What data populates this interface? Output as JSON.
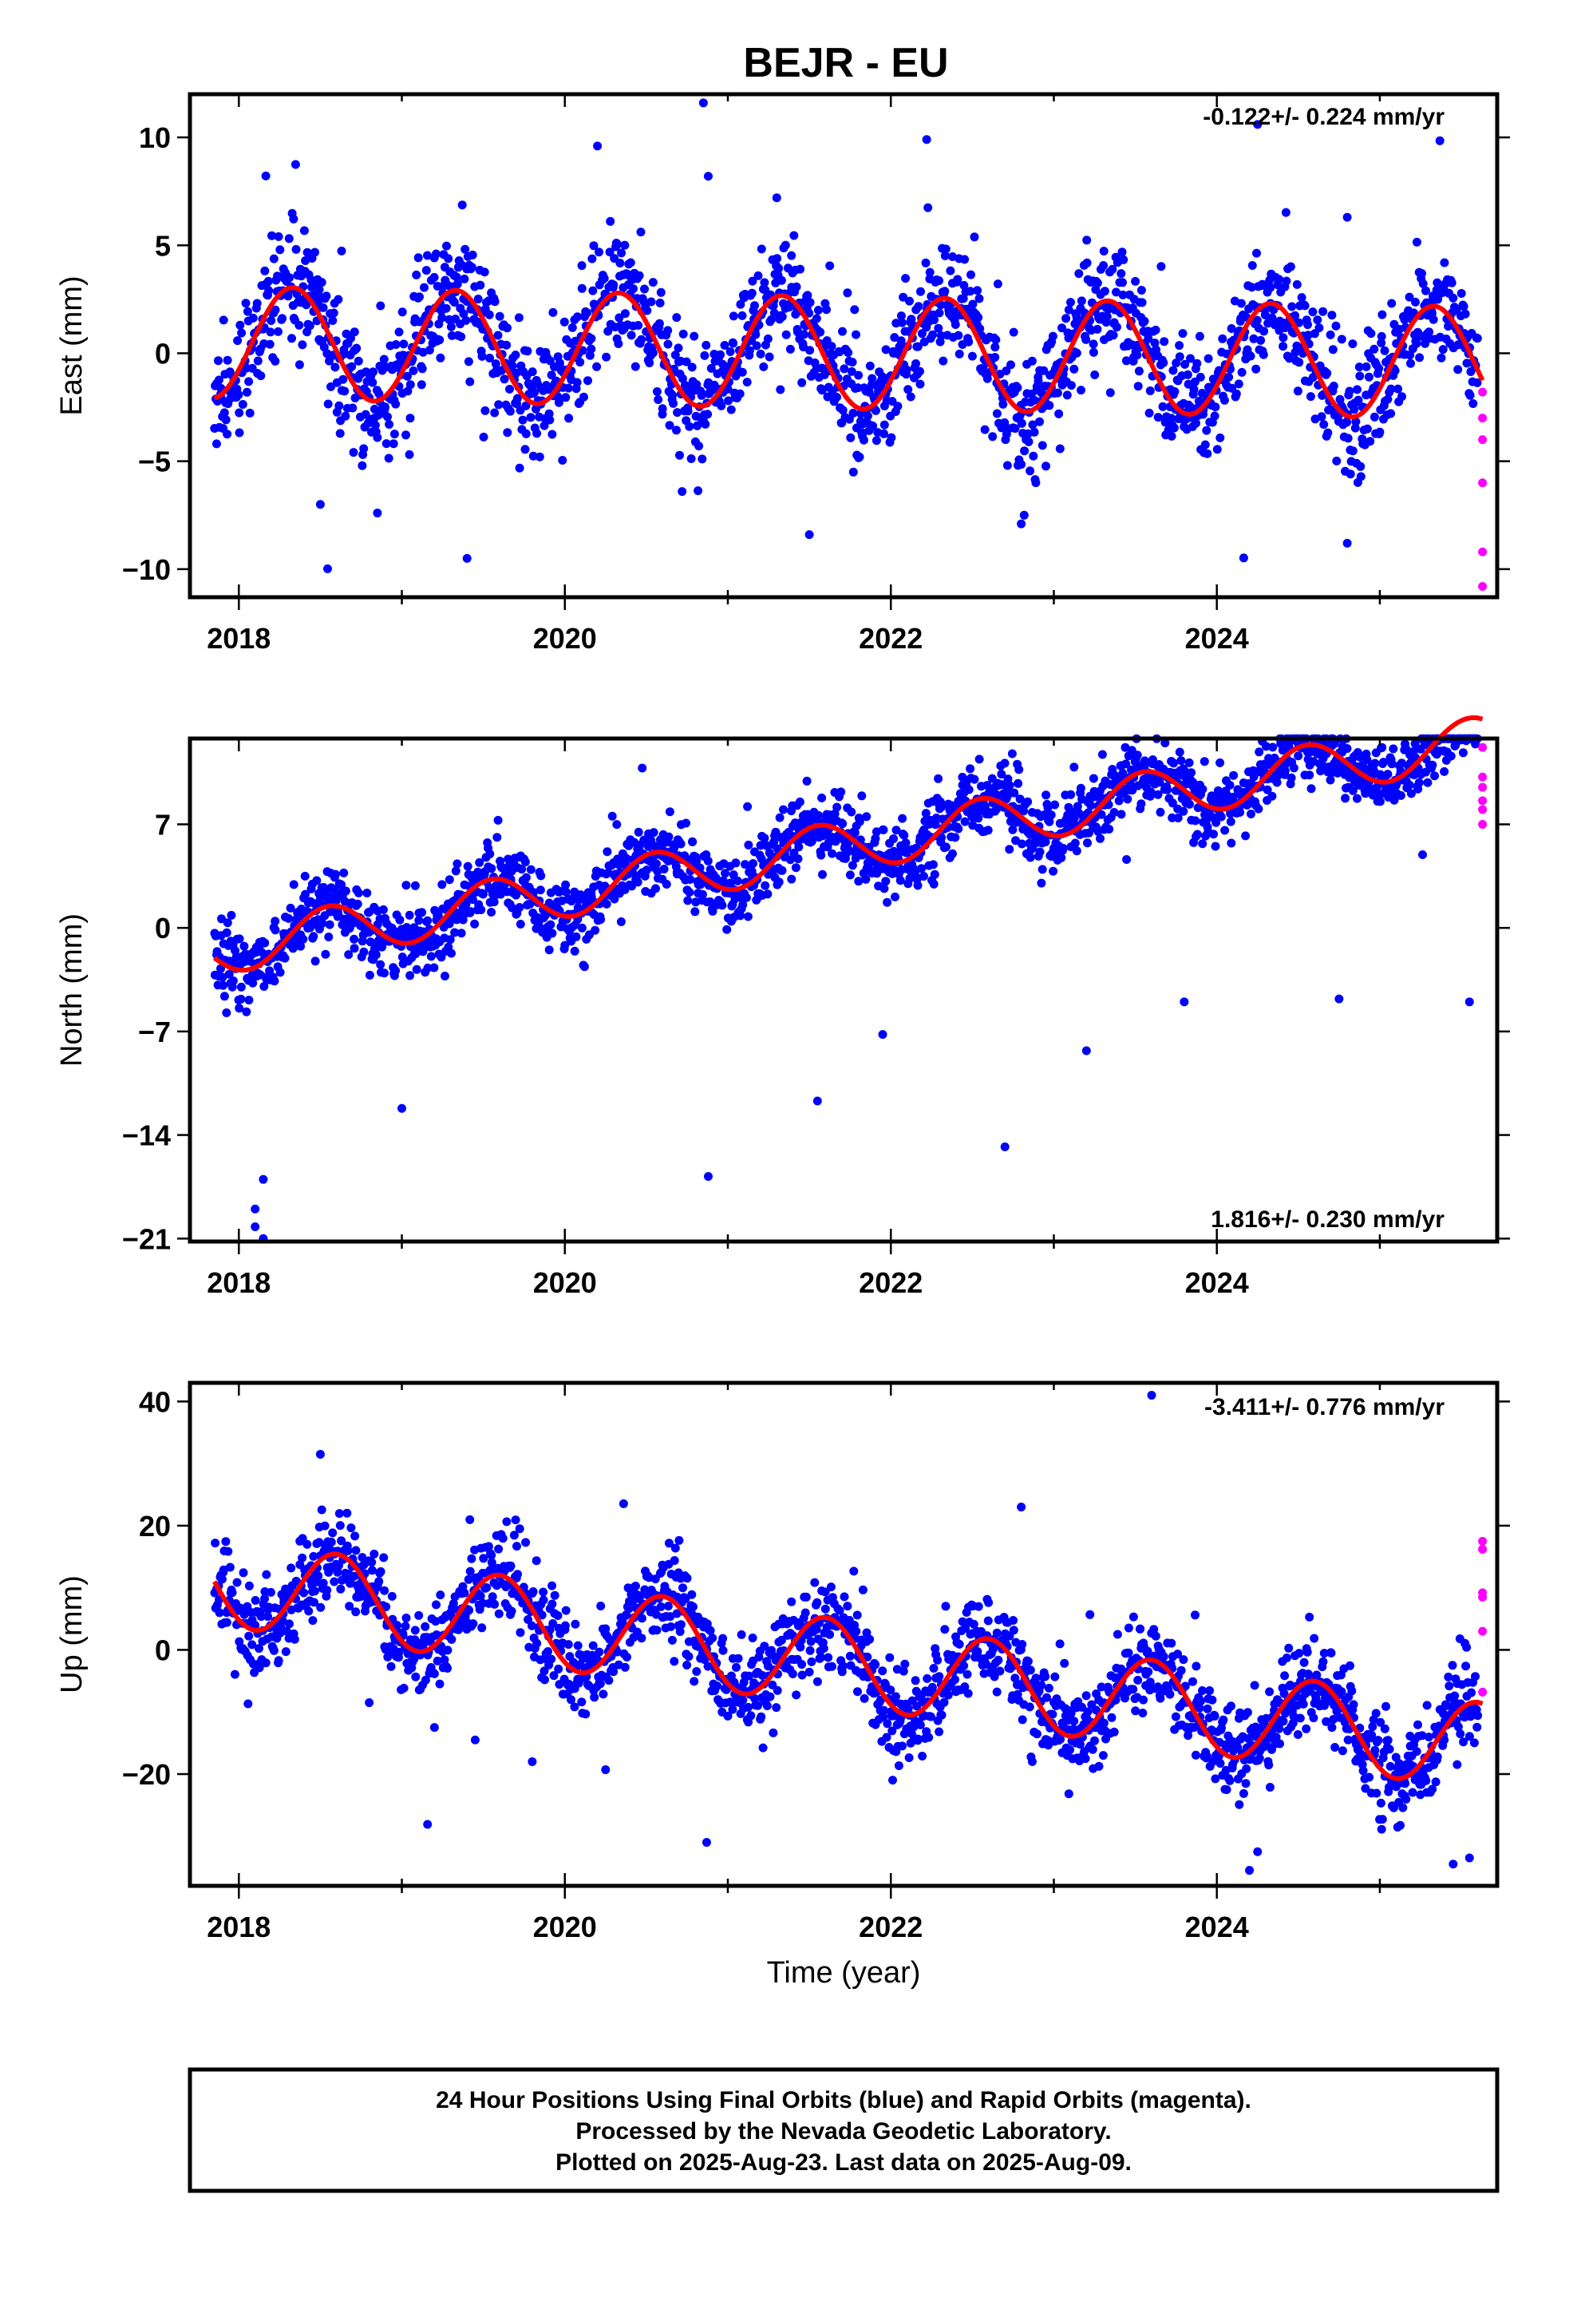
{
  "title": "BEJR - EU",
  "xlabel": "Time (year)",
  "footer": [
    "24 Hour Positions Using Final Orbits (blue) and Rapid Orbits (magenta).",
    "Processed by the Nevada Geodetic Laboratory.",
    "Plotted on 2025-Aug-23. Last data on 2025-Aug-09."
  ],
  "colors": {
    "final": "#0000ff",
    "rapid": "#ff00ff",
    "fit": "#ff0000",
    "frame": "#000000"
  },
  "chart_data": [
    {
      "type": "scatter",
      "component": "east",
      "ylabel": "East (mm)",
      "rate_text": "-0.122+/- 0.224 mm/yr",
      "rate_position": "top-right",
      "xlim": [
        2017.7,
        2025.72
      ],
      "ylim": [
        -11.3,
        12
      ],
      "xticks": [
        2018,
        2020,
        2022,
        2024
      ],
      "xtick_labels": [
        "2018",
        "2020",
        "2022",
        "2024"
      ],
      "yticks": [
        -10,
        -5,
        0,
        5,
        10
      ],
      "ytick_labels": [
        "−10",
        "−5",
        "0",
        "5",
        "10"
      ],
      "series": [
        {
          "kind": "final_orbits",
          "x_start": 2017.85,
          "x_end": 2025.6,
          "amplitude": 2.6,
          "phase": 2018.33,
          "rate": -0.122,
          "offset": 0.5,
          "noise": 1.35,
          "samples": 1900
        },
        {
          "kind": "rapid_orbits",
          "x": [
            2025.63,
            2025.63,
            2025.63,
            2025.63,
            2025.63,
            2025.63
          ],
          "y": [
            -3.0,
            -4.0,
            -6.0,
            -9.2,
            -10.8,
            -1.8
          ]
        },
        {
          "kind": "fit",
          "x_start": 2017.85,
          "x_end": 2025.63
        }
      ],
      "outliers": [
        [
          2020.2,
          9.6
        ],
        [
          2020.85,
          11.6
        ],
        [
          2020.88,
          8.2
        ],
        [
          2022.22,
          9.9
        ],
        [
          2024.25,
          10.6
        ],
        [
          2019.4,
          -9.5
        ],
        [
          2018.5,
          -7.0
        ],
        [
          2018.85,
          -7.4
        ],
        [
          2021.5,
          -8.4
        ],
        [
          2022.8,
          -7.9
        ],
        [
          2024.8,
          -8.8
        ],
        [
          2021.3,
          7.2
        ],
        [
          2024.8,
          6.3
        ]
      ]
    },
    {
      "type": "scatter",
      "component": "north",
      "ylabel": "North (mm)",
      "rate_text": "1.816+/- 0.230 mm/yr",
      "rate_position": "bottom-right",
      "xlim": [
        2017.7,
        2025.72
      ],
      "ylim": [
        -21.2,
        12.8
      ],
      "xticks": [
        2018,
        2020,
        2022,
        2024
      ],
      "xtick_labels": [
        "2018",
        "2020",
        "2022",
        "2024"
      ],
      "yticks": [
        -21,
        -14,
        -7,
        0,
        7
      ],
      "ytick_labels": [
        "−21",
        "−14",
        "−7",
        "0",
        "7"
      ],
      "series": [
        {
          "kind": "final_orbits",
          "x_start": 2017.85,
          "x_end": 2025.6,
          "amplitude": 1.7,
          "phase": 2018.55,
          "rate": 1.816,
          "offset": -1.5,
          "noise": 1.2,
          "samples": 1900
        },
        {
          "kind": "rapid_orbits",
          "x": [
            2025.63,
            2025.63,
            2025.63,
            2025.63,
            2025.63,
            2025.63
          ],
          "y": [
            12.2,
            10.2,
            9.5,
            8.6,
            8.0,
            7.0
          ]
        },
        {
          "kind": "fit",
          "x_start": 2017.85,
          "x_end": 2025.63
        }
      ],
      "outliers": [
        [
          2018.1,
          -20.2
        ],
        [
          2018.15,
          -21.0
        ],
        [
          2018.1,
          -19.0
        ],
        [
          2018.15,
          -17.0
        ],
        [
          2020.88,
          -16.8
        ],
        [
          2022.7,
          -14.8
        ],
        [
          2021.55,
          -11.7
        ],
        [
          2019.0,
          -12.2
        ],
        [
          2021.95,
          -7.2
        ],
        [
          2023.2,
          -8.3
        ],
        [
          2023.8,
          -5.0
        ],
        [
          2024.75,
          -4.8
        ],
        [
          2025.55,
          -5.0
        ]
      ]
    },
    {
      "type": "scatter",
      "component": "up",
      "ylabel": "Up (mm)",
      "rate_text": "-3.411+/- 0.776 mm/yr",
      "rate_position": "top-right",
      "xlim": [
        2017.7,
        2025.72
      ],
      "ylim": [
        -38,
        43
      ],
      "xticks": [
        2018,
        2020,
        2022,
        2024
      ],
      "xtick_labels": [
        "2018",
        "2020",
        "2022",
        "2024"
      ],
      "yticks": [
        -20,
        0,
        20,
        40
      ],
      "ytick_labels": [
        "−20",
        "0",
        "20",
        "40"
      ],
      "series": [
        {
          "kind": "final_orbits",
          "x_start": 2017.85,
          "x_end": 2025.6,
          "amplitude": 7.0,
          "phase": 2018.6,
          "rate": -3.411,
          "offset": 11.0,
          "noise": 3.6,
          "samples": 1900
        },
        {
          "kind": "rapid_orbits",
          "x": [
            2025.63,
            2025.63,
            2025.63,
            2025.63,
            2025.63,
            2025.63
          ],
          "y": [
            17.5,
            16.2,
            9.2,
            8.5,
            3.0,
            -6.8
          ]
        },
        {
          "kind": "fit",
          "x_start": 2017.85,
          "x_end": 2025.63
        }
      ],
      "outliers": [
        [
          2023.6,
          41.0
        ],
        [
          2018.5,
          31.5
        ],
        [
          2020.87,
          -31.0
        ],
        [
          2024.2,
          -35.5
        ],
        [
          2024.25,
          -32.5
        ],
        [
          2025.45,
          -34.5
        ],
        [
          2025.55,
          -33.5
        ],
        [
          2019.8,
          -18.0
        ],
        [
          2020.25,
          -19.3
        ],
        [
          2018.8,
          -8.5
        ],
        [
          2019.2,
          -12.5
        ],
        [
          2019.45,
          -14.5
        ],
        [
          2022.8,
          23.0
        ]
      ]
    }
  ]
}
